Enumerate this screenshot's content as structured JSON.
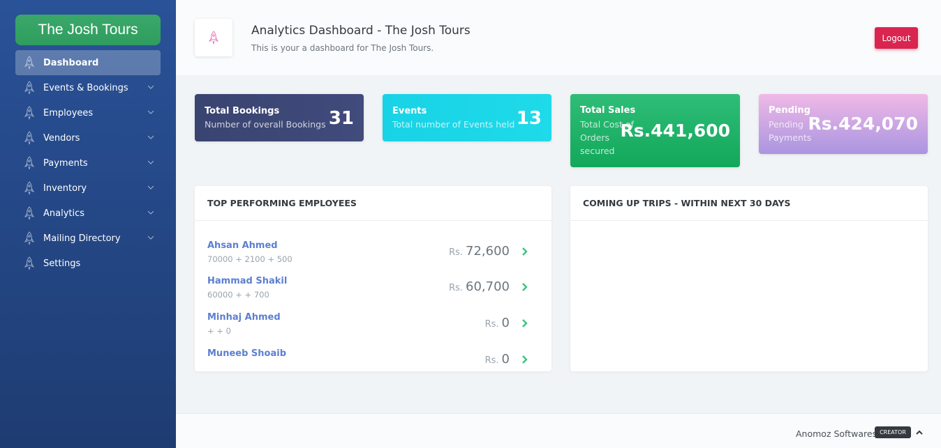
{
  "sidebar": {
    "brand": "The Josh Tours",
    "items": [
      {
        "label": "Dashboard",
        "icon": "rocket-icon",
        "active": true,
        "expandable": false
      },
      {
        "label": "Events & Bookings",
        "icon": "rocket-icon",
        "expandable": true
      },
      {
        "label": "Employees",
        "icon": "rocket-icon",
        "expandable": true
      },
      {
        "label": "Vendors",
        "icon": "rocket-icon",
        "expandable": true
      },
      {
        "label": "Payments",
        "icon": "rocket-icon",
        "expandable": true
      },
      {
        "label": "Inventory",
        "icon": "rocket-icon",
        "expandable": true
      },
      {
        "label": "Analytics",
        "icon": "rocket-icon",
        "expandable": true
      },
      {
        "label": "Mailing Directory",
        "icon": "rocket-icon",
        "expandable": true
      },
      {
        "label": "Settings",
        "icon": "rocket-icon",
        "expandable": false
      }
    ]
  },
  "header": {
    "icon": "rocket-icon",
    "title": "Analytics Dashboard - The Josh Tours",
    "subtitle": "This is your a dashboard for The Josh Tours.",
    "logout_label": "Logout"
  },
  "stats": [
    {
      "title": "Total Bookings",
      "sub": "Number of overall Bookings",
      "value": "31",
      "color": "#3f4a7a"
    },
    {
      "title": "Events",
      "sub": "Total number of Events held",
      "value": "13",
      "color": "#16d9e3"
    },
    {
      "title": "Total Sales",
      "sub": "Total Cost of Orders secured",
      "value": "Rs.441,600",
      "color": "#1fb566"
    },
    {
      "title": "Pending",
      "sub": "Pending Payments",
      "value": "Rs.424,070",
      "color": "#c9a3e3"
    }
  ],
  "employees_panel": {
    "title": "TOP PERFORMING EMPLOYEES",
    "rows": [
      {
        "name": "Ahsan Ahmed",
        "calc": "70000 + 2100 + 500",
        "currency": "Rs.",
        "amount": "72,600"
      },
      {
        "name": "Hammad Shakil",
        "calc": "60000 + + 700",
        "currency": "Rs.",
        "amount": "60,700"
      },
      {
        "name": "Minhaj Ahmed",
        "calc": "+ + 0",
        "currency": "Rs.",
        "amount": "0"
      },
      {
        "name": "Muneeb Shoaib",
        "calc": "",
        "currency": "Rs.",
        "amount": "0"
      }
    ]
  },
  "trips_panel": {
    "title": "COMING UP TRIPS - WITHIN NEXT 30 DAYS"
  },
  "footer": {
    "text": "Anomoz Softwares",
    "badge": "CREATOR",
    "scroll_icon": "chevron-up-icon"
  }
}
